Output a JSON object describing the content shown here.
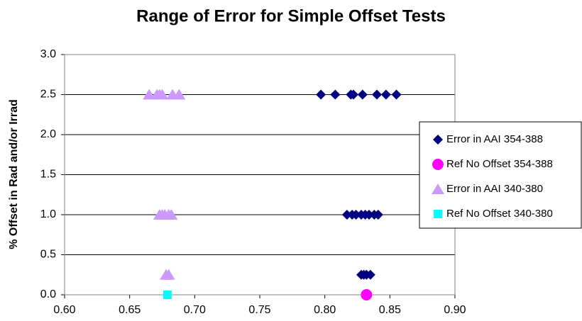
{
  "chart_data": {
    "type": "scatter",
    "title": "Range of Error for Simple Offset Tests",
    "y_label": "% Offset in Rad and/or Irrad",
    "xlim": [
      0.6,
      0.9
    ],
    "xticks": [
      {
        "value": 0.6,
        "label": "0.60"
      },
      0.65,
      {
        "value": 0.7,
        "label": "0.70"
      },
      0.75,
      {
        "value": 0.8,
        "label": "0.80"
      },
      0.85,
      {
        "value": 0.9,
        "label": "0.90"
      }
    ],
    "ylim": [
      0,
      3
    ],
    "yticks": [
      {
        "value": 0,
        "label": "0.0"
      },
      0.5,
      {
        "value": 1,
        "label": "1.0"
      },
      1.5,
      {
        "value": 2,
        "label": "2.0"
      },
      2.5,
      {
        "value": 3,
        "label": "3.0"
      }
    ],
    "grid": true,
    "legend": "right",
    "series": [
      {
        "name": "Error in AAI 354-388",
        "color": "#000080",
        "marker": "diamond",
        "x": [
          0.797,
          0.808,
          0.82,
          0.822,
          0.829,
          0.84,
          0.847,
          0.855,
          0.817,
          0.821,
          0.824,
          0.828,
          0.831,
          0.834,
          0.838,
          0.841,
          0.828,
          0.83,
          0.832,
          0.835
        ],
        "values": [
          2.5,
          2.5,
          2.5,
          2.5,
          2.5,
          2.5,
          2.5,
          2.5,
          1,
          1,
          1,
          1,
          1,
          1,
          1,
          1,
          0.25,
          0.25,
          0.25,
          0.25
        ]
      },
      {
        "name": "Ref No Offset 354-388",
        "color": "#ff00ff",
        "marker": "circle",
        "x": [
          0.832
        ],
        "values": [
          0
        ]
      },
      {
        "name": "Error in AAI 340-380",
        "color": "#cc99ff",
        "marker": "triangle",
        "x": [
          0.665,
          0.671,
          0.673,
          0.675,
          0.683,
          0.688,
          0.673,
          0.675,
          0.677,
          0.68,
          0.682,
          0.678,
          0.68
        ],
        "values": [
          2.5,
          2.5,
          2.5,
          2.5,
          2.5,
          2.5,
          1,
          1,
          1,
          1,
          1,
          0.25,
          0.25
        ]
      },
      {
        "name": "Ref No Offset 340-380",
        "color": "#00ffff",
        "marker": "square",
        "x": [
          0.679
        ],
        "values": [
          0
        ]
      }
    ]
  }
}
